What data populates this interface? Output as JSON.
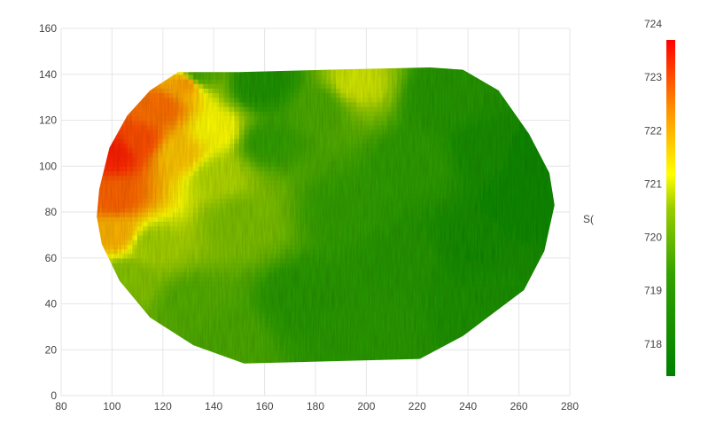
{
  "chart_data": {
    "type": "heatmap",
    "title": "",
    "xlabel": "",
    "ylabel": "",
    "xlim": [
      80,
      280
    ],
    "ylim": [
      0,
      160
    ],
    "x_ticks": [
      80,
      100,
      120,
      140,
      160,
      180,
      200,
      220,
      240,
      260,
      280
    ],
    "y_ticks": [
      0,
      20,
      40,
      60,
      80,
      100,
      120,
      140,
      160
    ],
    "grid": true,
    "colorscale": {
      "min": 717.4,
      "max": 723.7,
      "ticks": [
        718,
        719,
        720,
        721,
        722,
        723,
        724
      ],
      "colors": [
        {
          "pos": 0.0,
          "color": "#008000"
        },
        {
          "pos": 0.3,
          "color": "#32a000"
        },
        {
          "pos": 0.5,
          "color": "#9acd00"
        },
        {
          "pos": 0.6,
          "color": "#ffff00"
        },
        {
          "pos": 0.8,
          "color": "#ff8c00"
        },
        {
          "pos": 1.0,
          "color": "#ff0000"
        }
      ]
    },
    "legend_position": "right",
    "stray_label": "S(",
    "boundary": [
      [
        95,
        90
      ],
      [
        99,
        108
      ],
      [
        106,
        122
      ],
      [
        115,
        133
      ],
      [
        126,
        141
      ],
      [
        150,
        141
      ],
      [
        185,
        142
      ],
      [
        225,
        143
      ],
      [
        238,
        142
      ],
      [
        252,
        133
      ],
      [
        264,
        114
      ],
      [
        272,
        97
      ],
      [
        274,
        83
      ],
      [
        270,
        63
      ],
      [
        262,
        46
      ],
      [
        250,
        36
      ],
      [
        238,
        26
      ],
      [
        221,
        16
      ],
      [
        152,
        14
      ],
      [
        132,
        22
      ],
      [
        115,
        34
      ],
      [
        103,
        50
      ],
      [
        96,
        66
      ],
      [
        94,
        78
      ]
    ],
    "samples": [
      {
        "x": 100,
        "y": 105,
        "value": 723.4
      },
      {
        "x": 110,
        "y": 110,
        "value": 723.0
      },
      {
        "x": 100,
        "y": 85,
        "value": 722.8
      },
      {
        "x": 100,
        "y": 70,
        "value": 722.0
      },
      {
        "x": 118,
        "y": 125,
        "value": 722.7
      },
      {
        "x": 128,
        "y": 135,
        "value": 722.2
      },
      {
        "x": 125,
        "y": 105,
        "value": 721.8
      },
      {
        "x": 140,
        "y": 115,
        "value": 721.2
      },
      {
        "x": 140,
        "y": 95,
        "value": 720.7
      },
      {
        "x": 133,
        "y": 139,
        "value": 719.6
      },
      {
        "x": 115,
        "y": 65,
        "value": 720.6
      },
      {
        "x": 105,
        "y": 50,
        "value": 720.3
      },
      {
        "x": 130,
        "y": 40,
        "value": 719.7
      },
      {
        "x": 145,
        "y": 25,
        "value": 719.6
      },
      {
        "x": 150,
        "y": 75,
        "value": 720.2
      },
      {
        "x": 160,
        "y": 110,
        "value": 719.3
      },
      {
        "x": 158,
        "y": 135,
        "value": 718.6
      },
      {
        "x": 180,
        "y": 125,
        "value": 719.6
      },
      {
        "x": 195,
        "y": 135,
        "value": 720.9
      },
      {
        "x": 190,
        "y": 80,
        "value": 719.3
      },
      {
        "x": 175,
        "y": 40,
        "value": 718.9
      },
      {
        "x": 200,
        "y": 30,
        "value": 719.0
      },
      {
        "x": 215,
        "y": 60,
        "value": 718.8
      },
      {
        "x": 220,
        "y": 100,
        "value": 719.2
      },
      {
        "x": 230,
        "y": 130,
        "value": 718.8
      },
      {
        "x": 240,
        "y": 65,
        "value": 718.2
      },
      {
        "x": 245,
        "y": 105,
        "value": 718.3
      },
      {
        "x": 260,
        "y": 85,
        "value": 718.0
      },
      {
        "x": 265,
        "y": 100,
        "value": 717.9
      },
      {
        "x": 245,
        "y": 35,
        "value": 718.5
      }
    ]
  }
}
